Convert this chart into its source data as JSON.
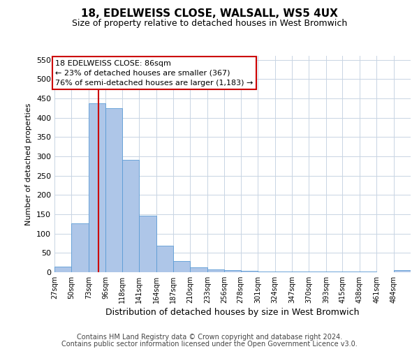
{
  "title": "18, EDELWEISS CLOSE, WALSALL, WS5 4UX",
  "subtitle": "Size of property relative to detached houses in West Bromwich",
  "xlabel": "Distribution of detached houses by size in West Bromwich",
  "ylabel": "Number of detached properties",
  "bin_labels": [
    "27sqm",
    "50sqm",
    "73sqm",
    "96sqm",
    "118sqm",
    "141sqm",
    "164sqm",
    "187sqm",
    "210sqm",
    "233sqm",
    "256sqm",
    "278sqm",
    "301sqm",
    "324sqm",
    "347sqm",
    "370sqm",
    "393sqm",
    "415sqm",
    "438sqm",
    "461sqm",
    "484sqm"
  ],
  "bin_edges": [
    27,
    50,
    73,
    96,
    118,
    141,
    164,
    187,
    210,
    233,
    256,
    278,
    301,
    324,
    347,
    370,
    393,
    415,
    438,
    461,
    484,
    507
  ],
  "bar_heights": [
    15,
    127,
    438,
    425,
    291,
    147,
    68,
    29,
    13,
    8,
    6,
    3,
    2,
    1,
    1,
    1,
    1,
    1,
    1,
    0,
    6
  ],
  "bar_color": "#aec6e8",
  "bar_edge_color": "#5b9bd5",
  "property_size": 86,
  "vline_color": "#cc0000",
  "annotation_line1": "18 EDELWEISS CLOSE: 86sqm",
  "annotation_line2": "← 23% of detached houses are smaller (367)",
  "annotation_line3": "76% of semi-detached houses are larger (1,183) →",
  "annotation_box_color": "#ffffff",
  "annotation_box_edge_color": "#cc0000",
  "ylim": [
    0,
    560
  ],
  "yticks": [
    0,
    50,
    100,
    150,
    200,
    250,
    300,
    350,
    400,
    450,
    500,
    550
  ],
  "footer_line1": "Contains HM Land Registry data © Crown copyright and database right 2024.",
  "footer_line2": "Contains public sector information licensed under the Open Government Licence v3.0.",
  "background_color": "#ffffff",
  "grid_color": "#c8d4e3"
}
